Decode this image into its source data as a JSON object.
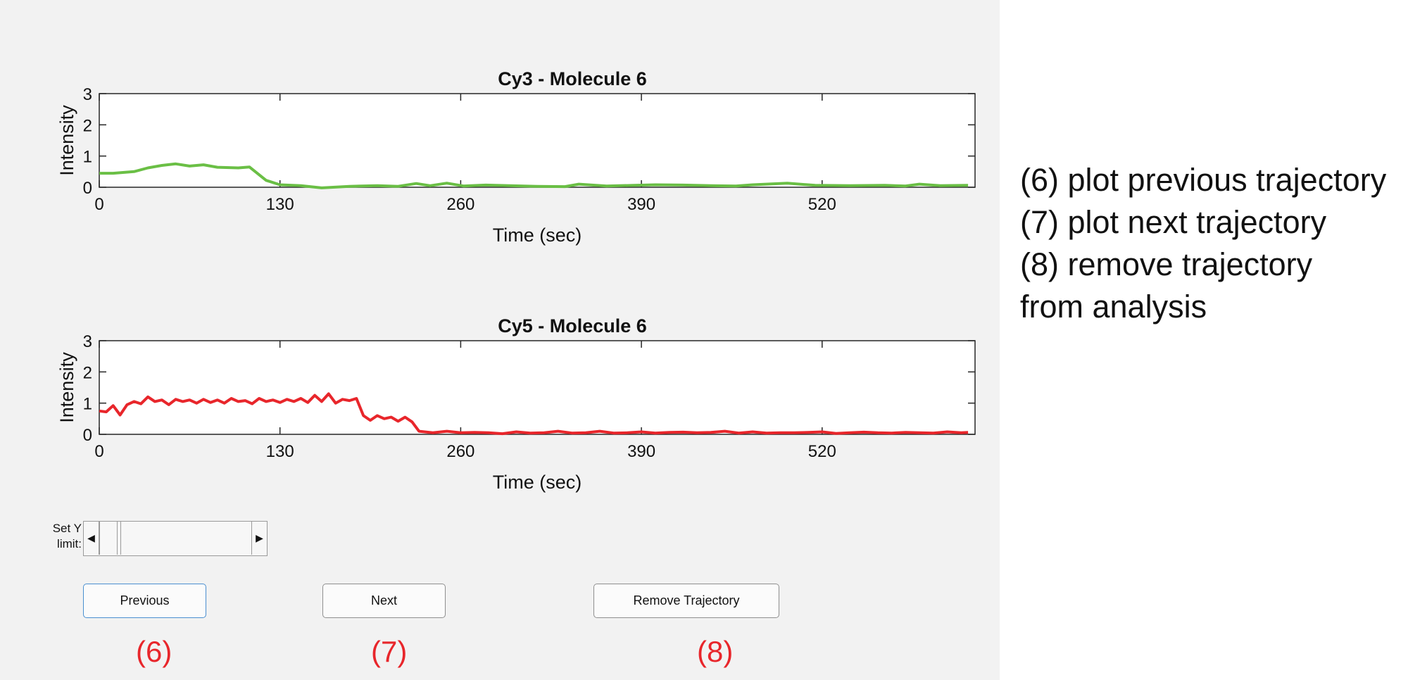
{
  "figure": {
    "plots": [
      {
        "title": "Cy3 - Molecule 6",
        "color": "#6abf45",
        "ylabel": "Intensity",
        "xlabel": "Time (sec)",
        "xticks": [
          "0",
          "130",
          "260",
          "390",
          "520"
        ],
        "yticks": [
          "0",
          "1",
          "2",
          "3"
        ]
      },
      {
        "title": "Cy5 - Molecule 6",
        "color": "#e8262b",
        "ylabel": "Intensity",
        "xlabel": "Time (sec)",
        "xticks": [
          "0",
          "130",
          "260",
          "390",
          "520"
        ],
        "yticks": [
          "0",
          "1",
          "2",
          "3"
        ]
      }
    ]
  },
  "chart_data": [
    {
      "type": "line",
      "title": "Cy3 - Molecule 6",
      "xlabel": "Time (sec)",
      "ylabel": "Intensity",
      "xlim": [
        0,
        630
      ],
      "ylim": [
        0,
        3
      ],
      "grid": false,
      "series": [
        {
          "color": "#6abf45",
          "x": [
            0,
            10,
            25,
            35,
            45,
            55,
            65,
            75,
            85,
            100,
            108,
            120,
            130,
            145,
            160,
            180,
            200,
            215,
            228,
            238,
            250,
            262,
            278,
            295,
            315,
            335,
            345,
            365,
            385,
            400,
            420,
            440,
            458,
            470,
            495,
            515,
            540,
            565,
            580,
            590,
            605,
            625
          ],
          "y": [
            0.45,
            0.45,
            0.5,
            0.62,
            0.7,
            0.75,
            0.68,
            0.72,
            0.64,
            0.62,
            0.65,
            0.22,
            0.08,
            0.05,
            -0.02,
            0.03,
            0.05,
            0.03,
            0.12,
            0.05,
            0.13,
            0.04,
            0.07,
            0.05,
            0.03,
            0.02,
            0.1,
            0.04,
            0.06,
            0.08,
            0.07,
            0.05,
            0.04,
            0.08,
            0.13,
            0.06,
            0.05,
            0.06,
            0.04,
            0.1,
            0.05,
            0.06
          ]
        }
      ]
    },
    {
      "type": "line",
      "title": "Cy5 - Molecule 6",
      "xlabel": "Time (sec)",
      "ylabel": "Intensity",
      "xlim": [
        0,
        630
      ],
      "ylim": [
        0,
        3
      ],
      "grid": false,
      "series": [
        {
          "color": "#e8262b",
          "x": [
            0,
            5,
            10,
            15,
            20,
            25,
            30,
            35,
            40,
            45,
            50,
            55,
            60,
            65,
            70,
            75,
            80,
            85,
            90,
            95,
            100,
            105,
            110,
            115,
            120,
            125,
            130,
            135,
            140,
            145,
            150,
            155,
            160,
            165,
            170,
            175,
            180,
            185,
            190,
            195,
            200,
            205,
            210,
            215,
            220,
            225,
            230,
            240,
            250,
            260,
            270,
            280,
            290,
            300,
            310,
            320,
            330,
            340,
            350,
            360,
            370,
            380,
            390,
            400,
            410,
            420,
            430,
            440,
            450,
            460,
            470,
            480,
            490,
            500,
            510,
            520,
            530,
            540,
            550,
            560,
            570,
            580,
            590,
            600,
            610,
            620,
            625
          ],
          "y": [
            0.75,
            0.72,
            0.92,
            0.62,
            0.95,
            1.05,
            0.98,
            1.2,
            1.05,
            1.1,
            0.95,
            1.12,
            1.05,
            1.1,
            1.0,
            1.12,
            1.02,
            1.1,
            1.0,
            1.15,
            1.05,
            1.08,
            0.98,
            1.15,
            1.05,
            1.1,
            1.02,
            1.12,
            1.05,
            1.15,
            1.02,
            1.25,
            1.05,
            1.3,
            1.0,
            1.12,
            1.08,
            1.15,
            0.6,
            0.45,
            0.6,
            0.5,
            0.55,
            0.42,
            0.55,
            0.4,
            0.1,
            0.05,
            0.1,
            0.05,
            0.06,
            0.05,
            0.02,
            0.08,
            0.04,
            0.05,
            0.1,
            0.04,
            0.05,
            0.1,
            0.04,
            0.05,
            0.08,
            0.04,
            0.06,
            0.07,
            0.05,
            0.06,
            0.1,
            0.04,
            0.08,
            0.04,
            0.05,
            0.05,
            0.06,
            0.08,
            0.03,
            0.05,
            0.07,
            0.05,
            0.04,
            0.06,
            0.05,
            0.04,
            0.08,
            0.05,
            0.06
          ]
        }
      ]
    }
  ],
  "controls": {
    "ylimit_label": "Set Y limit:",
    "previous_label": "Previous",
    "next_label": "Next",
    "remove_label": "Remove Trajectory"
  },
  "callouts": {
    "previous": "(6)",
    "next": "(7)",
    "remove": "(8)",
    "color": "#e8262b"
  },
  "annotations": [
    "(6) plot previous trajectory",
    "(7) plot next trajectory",
    "(8) remove trajectory",
    "from analysis"
  ]
}
